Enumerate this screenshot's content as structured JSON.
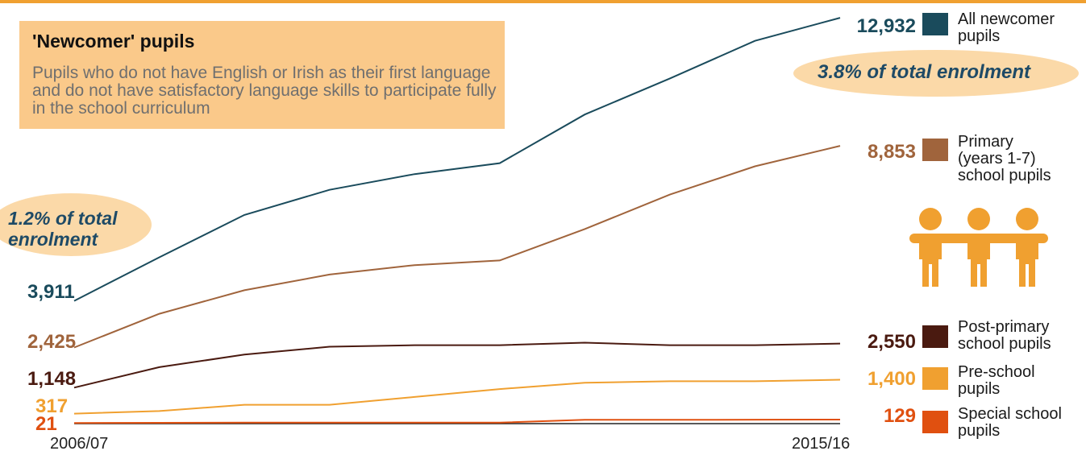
{
  "definition": {
    "title": "'Newcomer' pupils",
    "body": "Pupils who do not have English or Irish as their first language and do not have satisfactory language skills to participate fully in the school curriculum"
  },
  "annotations": {
    "start_share": "1.2% of total enrolment",
    "end_share": "3.8% of total enrolment"
  },
  "chart_data": {
    "type": "line",
    "x": [
      "2006/07",
      "2007/08",
      "2008/09",
      "2009/10",
      "2010/11",
      "2011/12",
      "2012/13",
      "2013/14",
      "2014/15",
      "2015/16"
    ],
    "x_tick_labels": [
      "2006/07",
      "2015/16"
    ],
    "series": [
      {
        "name": "All newcomer pupils",
        "color": "#1a4b5c",
        "start_label": "3,911",
        "end_label": "12,932",
        "values": [
          3911,
          5300,
          6650,
          7450,
          7950,
          8300,
          9850,
          11000,
          12200,
          12932
        ]
      },
      {
        "name": "Primary (years 1-7) school pupils",
        "color": "#a0643c",
        "start_label": "2,425",
        "end_label": "8,853",
        "values": [
          2425,
          3500,
          4250,
          4750,
          5050,
          5200,
          6200,
          7300,
          8200,
          8853
        ]
      },
      {
        "name": "Post-primary school pupils",
        "color": "#4a1a10",
        "start_label": "1,148",
        "end_label": "2,550",
        "values": [
          1148,
          1800,
          2200,
          2450,
          2500,
          2500,
          2580,
          2500,
          2500,
          2550
        ]
      },
      {
        "name": "Pre-school pupils",
        "color": "#f0a030",
        "start_label": "317",
        "end_label": "1,400",
        "values": [
          317,
          400,
          600,
          600,
          850,
          1100,
          1300,
          1350,
          1350,
          1400
        ]
      },
      {
        "name": "Special school pupils",
        "color": "#e05010",
        "start_label": "21",
        "end_label": "129",
        "values": [
          21,
          25,
          30,
          30,
          30,
          30,
          120,
          120,
          125,
          129
        ]
      }
    ],
    "legend_lines": [
      [
        "All newcomer",
        "pupils"
      ],
      [
        "Primary",
        "(years 1-7)",
        "school pupils"
      ],
      [
        "Post-primary",
        "school pupils"
      ],
      [
        "Pre-school",
        "pupils"
      ],
      [
        "Special school",
        "pupils"
      ]
    ],
    "ylim": [
      0,
      13500
    ],
    "grid": false,
    "legend": "right"
  }
}
